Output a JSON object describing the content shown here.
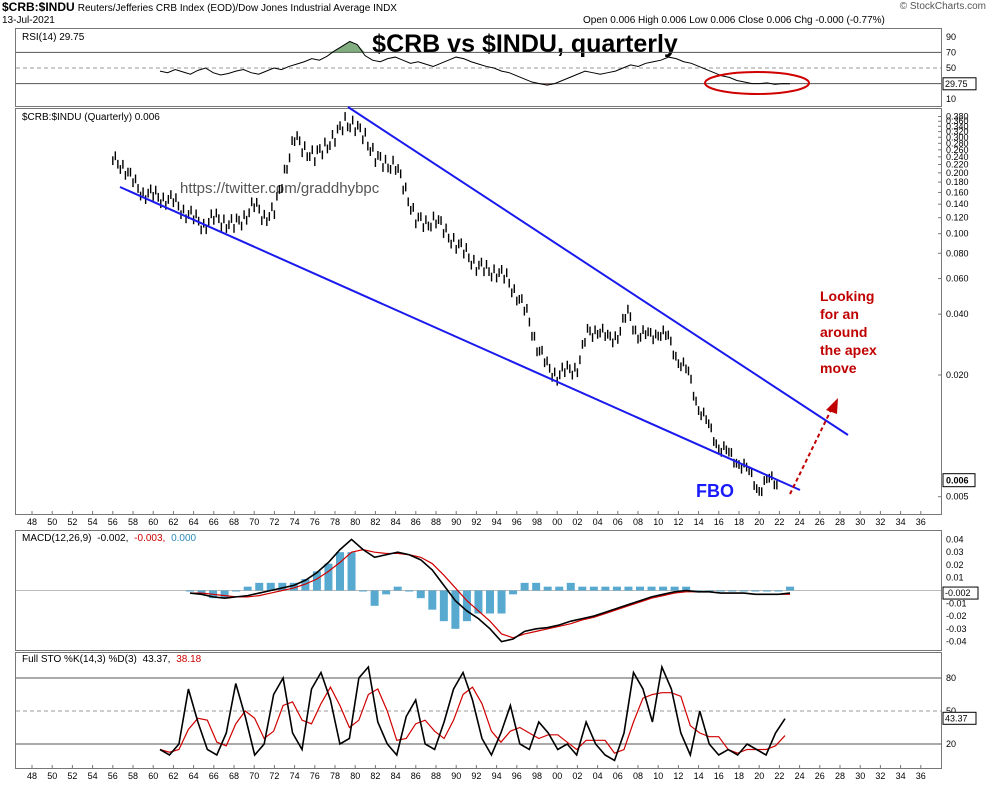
{
  "header": {
    "symbol": "$CRB:$INDU",
    "description": "Reuters/Jefferies CRB Index (EOD)/Dow Jones Industrial Average INDX",
    "date": "13-Jul-2021",
    "ohlc": "Open 0.006  High 0.006  Low 0.006  Close 0.006  Chg -0.000 (-0.77%)",
    "brand": "© StockCharts.com"
  },
  "chart_data": [
    {
      "panel": "rsi",
      "type": "line",
      "label": "RSI(14) 29.75",
      "title": "$CRB vs $INDU, quarterly",
      "yticks": [
        "90",
        "70",
        "50",
        "30",
        "10"
      ],
      "last_value": "29.75",
      "levels": [
        70,
        50,
        30
      ],
      "ylim": [
        0,
        100
      ],
      "values": [
        46,
        44,
        48,
        45,
        42,
        47,
        50,
        44,
        41,
        43,
        46,
        48,
        44,
        42,
        46,
        50,
        48,
        52,
        55,
        58,
        62,
        60,
        65,
        72,
        78,
        84,
        80,
        66,
        60,
        58,
        62,
        64,
        60,
        56,
        58,
        55,
        52,
        56,
        60,
        64,
        62,
        58,
        55,
        52,
        50,
        46,
        44,
        40,
        36,
        32,
        30,
        28,
        30,
        34,
        38,
        42,
        46,
        44,
        42,
        44,
        46,
        50,
        54,
        52,
        56,
        58,
        60,
        64,
        62,
        58,
        56,
        52,
        48,
        44,
        40,
        38,
        34,
        32,
        30,
        30,
        31,
        29,
        30,
        29.75
      ]
    },
    {
      "panel": "price",
      "type": "line",
      "label": "$CRB:$INDU (Quarterly) 0.006",
      "scale": "log",
      "yticks": [
        "0.380",
        "0.360",
        "0.340",
        "0.320",
        "0.300",
        "0.280",
        "0.260",
        "0.240",
        "0.220",
        "0.200",
        "0.180",
        "0.160",
        "0.140",
        "0.120",
        "0.100",
        "0.080",
        "0.060",
        "0.040",
        "0.020",
        "0.005"
      ],
      "last_value": "0.006",
      "annotations": {
        "url": "https://twitter.com/graddhybpc",
        "fbo": "FBO",
        "note_lines": [
          "Looking",
          "for an",
          "around",
          "the apex",
          "move"
        ]
      },
      "x": [
        56,
        57,
        58,
        59,
        60,
        61,
        62,
        63,
        64,
        65,
        66,
        67,
        68,
        69,
        70,
        71,
        72,
        73,
        74,
        75,
        76,
        77,
        78,
        79,
        80,
        81,
        82,
        83,
        84,
        85,
        86,
        87,
        88,
        89,
        90,
        91,
        92,
        93,
        94,
        95,
        96,
        97,
        98,
        99,
        100,
        101,
        102,
        103,
        104,
        105,
        106,
        107,
        108,
        109,
        110,
        111,
        112,
        113,
        114,
        115,
        116,
        117,
        118,
        119,
        120,
        121
      ],
      "values": [
        0.23,
        0.22,
        0.18,
        0.16,
        0.155,
        0.15,
        0.145,
        0.13,
        0.12,
        0.11,
        0.12,
        0.115,
        0.11,
        0.12,
        0.14,
        0.12,
        0.13,
        0.2,
        0.3,
        0.26,
        0.24,
        0.27,
        0.3,
        0.36,
        0.34,
        0.3,
        0.24,
        0.22,
        0.22,
        0.16,
        0.12,
        0.11,
        0.12,
        0.1,
        0.09,
        0.08,
        0.07,
        0.066,
        0.065,
        0.06,
        0.05,
        0.04,
        0.028,
        0.022,
        0.02,
        0.021,
        0.022,
        0.032,
        0.034,
        0.03,
        0.032,
        0.04,
        0.032,
        0.031,
        0.033,
        0.03,
        0.024,
        0.02,
        0.014,
        0.011,
        0.009,
        0.008,
        0.0075,
        0.0065,
        0.0055,
        0.006
      ]
    },
    {
      "panel": "macd",
      "type": "line",
      "label": "MACD(12,26,9)",
      "readout": {
        "macd": "-0.002,",
        "signal": "-0.003,",
        "histogram": "0.000"
      },
      "yticks": [
        "0.04",
        "0.03",
        "0.02",
        "0.01",
        "-0.01",
        "-0.02",
        "-0.03",
        "-0.04"
      ],
      "last_value": "-0.002",
      "ylim": [
        -0.045,
        0.045
      ],
      "macd": [
        -0.002,
        -0.003,
        -0.005,
        -0.006,
        -0.005,
        -0.004,
        -0.002,
        0.0,
        0.002,
        0.004,
        0.008,
        0.014,
        0.022,
        0.032,
        0.04,
        0.032,
        0.026,
        0.028,
        0.03,
        0.028,
        0.024,
        0.016,
        0.004,
        -0.008,
        -0.016,
        -0.022,
        -0.03,
        -0.04,
        -0.038,
        -0.032,
        -0.03,
        -0.029,
        -0.027,
        -0.024,
        -0.022,
        -0.02,
        -0.017,
        -0.014,
        -0.011,
        -0.008,
        -0.005,
        -0.003,
        -0.001,
        0.0,
        -0.001,
        -0.001,
        -0.002,
        -0.002,
        -0.002,
        -0.003,
        -0.003,
        -0.003,
        -0.002
      ],
      "signal": [
        -0.002,
        -0.002,
        -0.003,
        -0.004,
        -0.005,
        -0.005,
        -0.004,
        -0.002,
        0.0,
        0.002,
        0.005,
        0.009,
        0.015,
        0.022,
        0.03,
        0.032,
        0.03,
        0.029,
        0.029,
        0.028,
        0.026,
        0.021,
        0.012,
        0.002,
        -0.008,
        -0.016,
        -0.024,
        -0.034,
        -0.037,
        -0.034,
        -0.032,
        -0.03,
        -0.028,
        -0.026,
        -0.023,
        -0.021,
        -0.018,
        -0.015,
        -0.012,
        -0.009,
        -0.006,
        -0.004,
        -0.002,
        -0.001,
        -0.001,
        -0.001,
        -0.002,
        -0.002,
        -0.002,
        -0.003,
        -0.003,
        -0.003,
        -0.003
      ]
    },
    {
      "panel": "stochastic",
      "type": "line",
      "label": "Full STO %K(14,3) %D(3)",
      "readout": {
        "k": "43.37,",
        "d": "38.18"
      },
      "yticks": [
        "80",
        "50",
        "20"
      ],
      "last_value": "43.37",
      "levels": [
        80,
        50,
        20
      ],
      "ylim": [
        0,
        100
      ],
      "k": [
        15,
        10,
        20,
        70,
        40,
        15,
        10,
        30,
        75,
        45,
        10,
        20,
        65,
        80,
        30,
        15,
        70,
        85,
        60,
        20,
        25,
        80,
        90,
        40,
        20,
        10,
        45,
        60,
        20,
        15,
        40,
        70,
        85,
        60,
        25,
        10,
        30,
        55,
        20,
        15,
        40,
        30,
        15,
        20,
        10,
        40,
        20,
        10,
        5,
        30,
        85,
        70,
        40,
        90,
        70,
        30,
        10,
        50,
        20,
        10,
        15,
        10,
        20,
        15,
        10,
        30,
        43
      ]
    }
  ],
  "x_axis": {
    "labels": [
      "48",
      "50",
      "52",
      "54",
      "56",
      "58",
      "60",
      "62",
      "64",
      "66",
      "68",
      "70",
      "72",
      "74",
      "76",
      "78",
      "80",
      "82",
      "84",
      "86",
      "88",
      "90",
      "92",
      "94",
      "96",
      "98",
      "00",
      "02",
      "04",
      "06",
      "08",
      "10",
      "12",
      "14",
      "16",
      "18",
      "20",
      "22",
      "24",
      "26",
      "28",
      "30",
      "32",
      "34",
      "36"
    ]
  }
}
